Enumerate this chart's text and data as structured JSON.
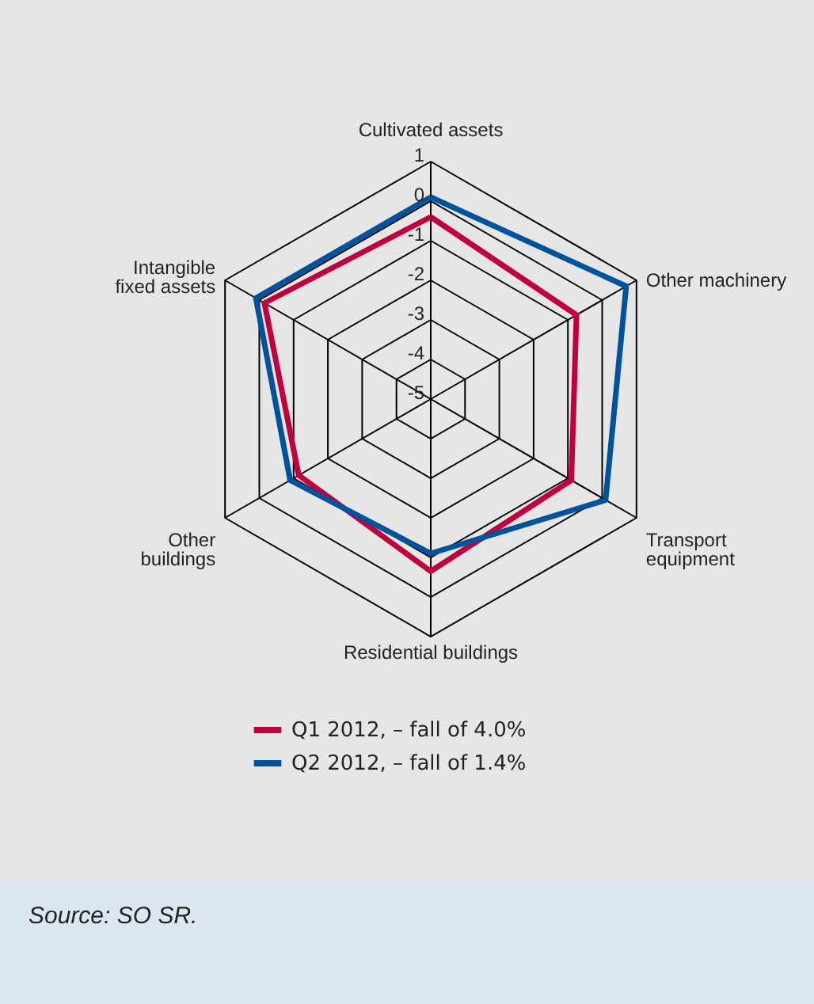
{
  "chart_data": {
    "type": "radar",
    "categories": [
      "Cultivated assets",
      "Other machinery",
      "Transport equipment",
      "Residential buildings",
      "Other buildings",
      "Intangible fixed assets"
    ],
    "series": [
      {
        "name": "Q1 2012, – fall of 4.0%",
        "color": "#c0003c",
        "values": [
          -0.4,
          -0.75,
          -0.9,
          -0.65,
          -1.15,
          -0.15
        ]
      },
      {
        "name": "Q2 2012, – fall of 1.4%",
        "color": "#00529b",
        "values": [
          0.1,
          0.7,
          0.1,
          -1.1,
          -0.9,
          0.1
        ]
      }
    ],
    "ylim": [
      -5,
      1
    ],
    "yticks": [
      -5,
      -4,
      -3,
      -2,
      -1,
      0,
      1
    ],
    "grid": true,
    "legend": "bottom",
    "annotations": [
      "Source: SO SR."
    ]
  }
}
